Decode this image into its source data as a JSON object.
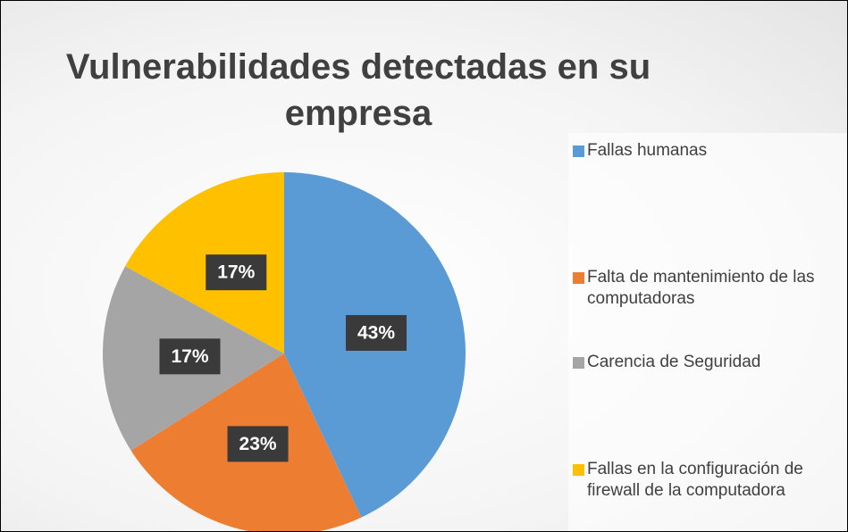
{
  "chart_data": {
    "type": "pie",
    "title": "Vulnerabilidades detectadas en su empresa",
    "categories": [
      "Fallas humanas",
      "Falta de mantenimiento de las computadoras",
      "Carencia de Seguridad",
      "Fallas en la configuración de firewall de la computadora"
    ],
    "values": [
      43,
      23,
      17,
      17
    ],
    "value_labels": [
      "43%",
      "23%",
      "17%",
      "17%"
    ],
    "colors": [
      "#5b9bd5",
      "#ed7d31",
      "#a5a5a5",
      "#ffc000"
    ],
    "legend": "right"
  }
}
